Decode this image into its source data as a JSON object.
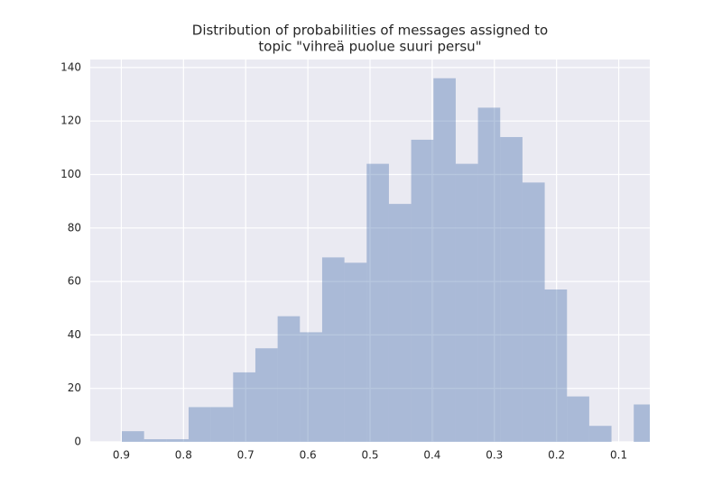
{
  "chart_data": {
    "type": "histogram",
    "title": [
      "Distribution of probabilities of messages assigned to",
      "topic \"vihreä puolue suuri persu\""
    ],
    "bins": [
      0.04,
      0.0758,
      0.1116,
      0.1474,
      0.1832,
      0.219,
      0.2548,
      0.2906,
      0.3264,
      0.3622,
      0.398,
      0.4338,
      0.4696,
      0.5054,
      0.5412,
      0.577,
      0.6128,
      0.6486,
      0.6844,
      0.7202,
      0.756,
      0.7918,
      0.8276,
      0.8634,
      0.8992
    ],
    "values": [
      14,
      0,
      6,
      17,
      57,
      97,
      114,
      125,
      104,
      136,
      113,
      89,
      104,
      67,
      69,
      41,
      47,
      35,
      26,
      13,
      13,
      1,
      1,
      4
    ],
    "color": "#4c72b0",
    "xlim": [
      0.95,
      0.05
    ],
    "xticks": [
      0.9,
      0.8,
      0.7,
      0.6,
      0.5,
      0.4,
      0.3,
      0.2,
      0.1
    ],
    "ylim": [
      0,
      143
    ],
    "yticks": [
      0,
      20,
      40,
      60,
      80,
      100,
      120,
      140
    ],
    "grid": true
  }
}
